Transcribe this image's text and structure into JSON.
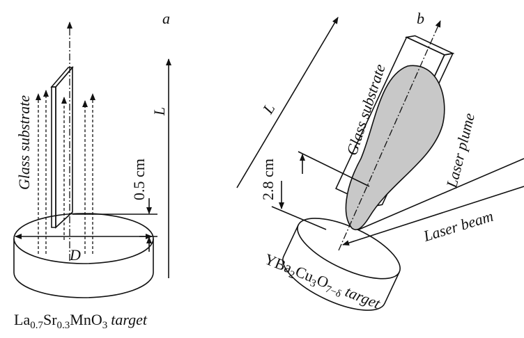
{
  "panels": [
    {
      "label": "a",
      "substrate_label": "Glass substrate",
      "length_label": "L",
      "gap_label": "0.5 cm",
      "diameter_label": "D",
      "target": {
        "formula": [
          "La",
          "0.7",
          "Sr",
          "0.3",
          "MnO",
          "3"
        ],
        "suffix": "target"
      }
    },
    {
      "label": "b",
      "length_label": "L",
      "substrate_label": "Glass substrate",
      "plume_label": "Laser plume",
      "distance_label": "2.8 cm",
      "beam_label": "Laser beam",
      "target": {
        "formula": [
          "YBa",
          "2",
          "Cu",
          "3",
          "O",
          "7−δ"
        ],
        "suffix": "target"
      }
    }
  ]
}
